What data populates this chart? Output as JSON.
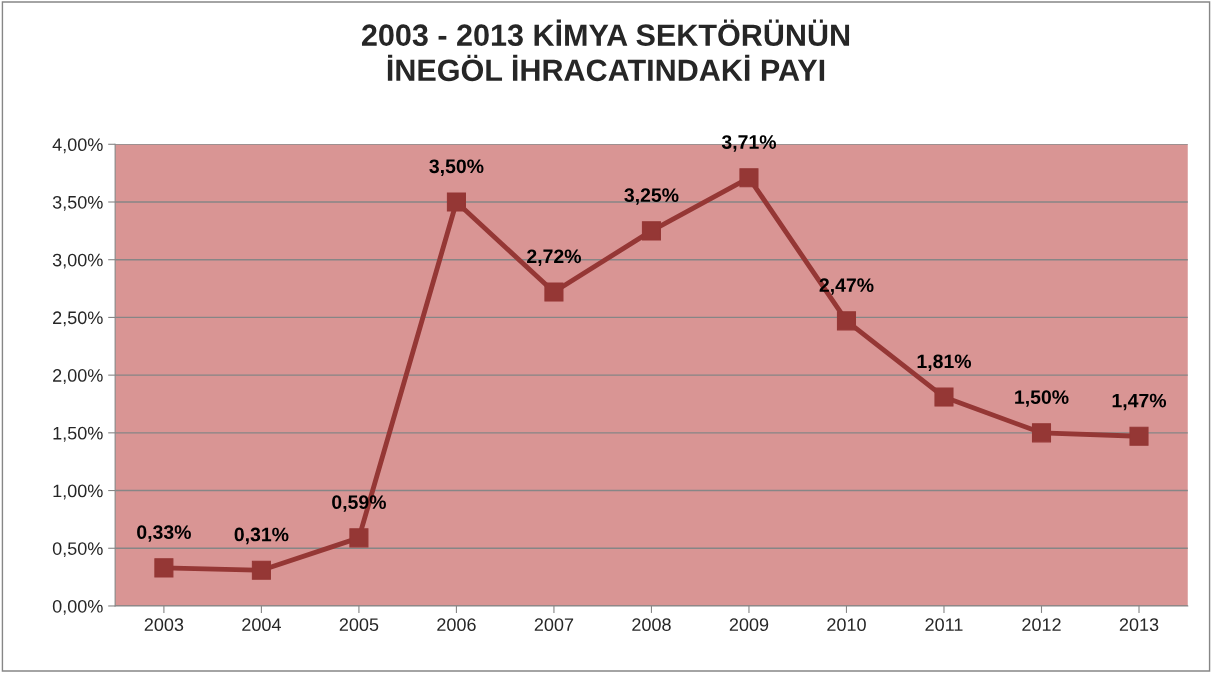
{
  "chart_data": {
    "type": "line",
    "title": "2003 - 2013 KİMYA SEKTÖRÜNÜN\nİNEGÖL İHRACATINDAKİ PAYI",
    "categories": [
      "2003",
      "2004",
      "2005",
      "2006",
      "2007",
      "2008",
      "2009",
      "2010",
      "2011",
      "2012",
      "2013"
    ],
    "series": [
      {
        "color": "#953735",
        "values": [
          0.33,
          0.31,
          0.59,
          3.5,
          2.72,
          3.25,
          3.71,
          2.47,
          1.81,
          1.5,
          1.47
        ],
        "value_labels": [
          "0,33%",
          "0,31%",
          "0,59%",
          "3,50%",
          "2,72%",
          "3,25%",
          "3,71%",
          "2,47%",
          "1,81%",
          "1,50%",
          "1,47%"
        ]
      }
    ],
    "ylim": [
      0,
      4
    ],
    "yticks": [
      {
        "value": 0,
        "label": "0,00%"
      },
      {
        "value": 0.5,
        "label": "0,50%"
      },
      {
        "value": 1,
        "label": "1,00%"
      },
      {
        "value": 1.5,
        "label": "1,50%"
      },
      {
        "value": 2,
        "label": "2,00%"
      },
      {
        "value": 2.5,
        "label": "2,50%"
      },
      {
        "value": 3,
        "label": "3,00%"
      },
      {
        "value": 3.5,
        "label": "3,50%"
      },
      {
        "value": 4,
        "label": "4,00%"
      }
    ],
    "grid": "y",
    "marker": "square",
    "line_style": "solid"
  }
}
